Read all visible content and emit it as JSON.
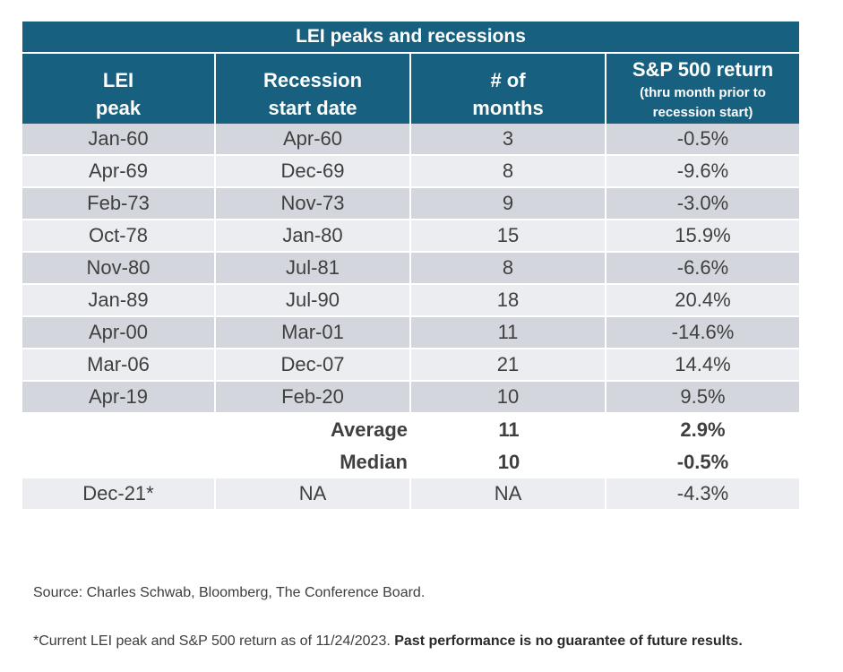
{
  "chart_data": {
    "type": "table",
    "title": "LEI peaks and recessions",
    "columns": [
      {
        "main": "LEI peak",
        "sub": ""
      },
      {
        "main": "Recession start date",
        "sub": ""
      },
      {
        "main": "# of months",
        "sub": ""
      },
      {
        "main": "S&P 500 return",
        "sub": "(thru month prior to recession start)"
      }
    ],
    "column_lines": [
      [
        "LEI",
        "peak"
      ],
      [
        "Recession",
        "start date"
      ],
      [
        "# of",
        "months"
      ],
      [
        "S&P 500 return"
      ]
    ],
    "column_sub_lines": [
      [],
      [],
      [],
      [
        "(thru month prior to",
        "recession start)"
      ]
    ],
    "rows": [
      [
        "Jan-60",
        "Apr-60",
        "3",
        "-0.5%"
      ],
      [
        "Apr-69",
        "Dec-69",
        "8",
        "-9.6%"
      ],
      [
        "Feb-73",
        "Nov-73",
        "9",
        "-3.0%"
      ],
      [
        "Oct-78",
        "Jan-80",
        "15",
        "15.9%"
      ],
      [
        "Nov-80",
        "Jul-81",
        "8",
        "-6.6%"
      ],
      [
        "Jan-89",
        "Jul-90",
        "18",
        "20.4%"
      ],
      [
        "Apr-00",
        "Mar-01",
        "11",
        "-14.6%"
      ],
      [
        "Mar-06",
        "Dec-07",
        "21",
        "14.4%"
      ],
      [
        "Apr-19",
        "Feb-20",
        "10",
        "9.5%"
      ]
    ],
    "months": [
      3,
      8,
      9,
      15,
      8,
      18,
      11,
      21,
      10
    ],
    "sp500_return_pct": [
      -0.5,
      -9.6,
      -3.0,
      15.9,
      -6.6,
      20.4,
      -14.6,
      14.4,
      9.5
    ],
    "summary": [
      {
        "label": "Average",
        "months": "11",
        "return": "2.9%"
      },
      {
        "label": "Median",
        "months": "10",
        "return": "-0.5%"
      }
    ],
    "current": [
      "Dec-21*",
      "NA",
      "NA",
      "-4.3%"
    ]
  },
  "footnotes": {
    "source": "Source: Charles Schwab, Bloomberg, The Conference Board.",
    "note_plain": "*Current LEI peak and S&P 500 return as of 11/24/2023. ",
    "note_bold": "Past performance is no guarantee of future results."
  },
  "colors": {
    "header_bg": "#17607f",
    "row_dark": "#d3d7dd",
    "row_light": "#ebedf0",
    "text": "#3d3d3d"
  }
}
